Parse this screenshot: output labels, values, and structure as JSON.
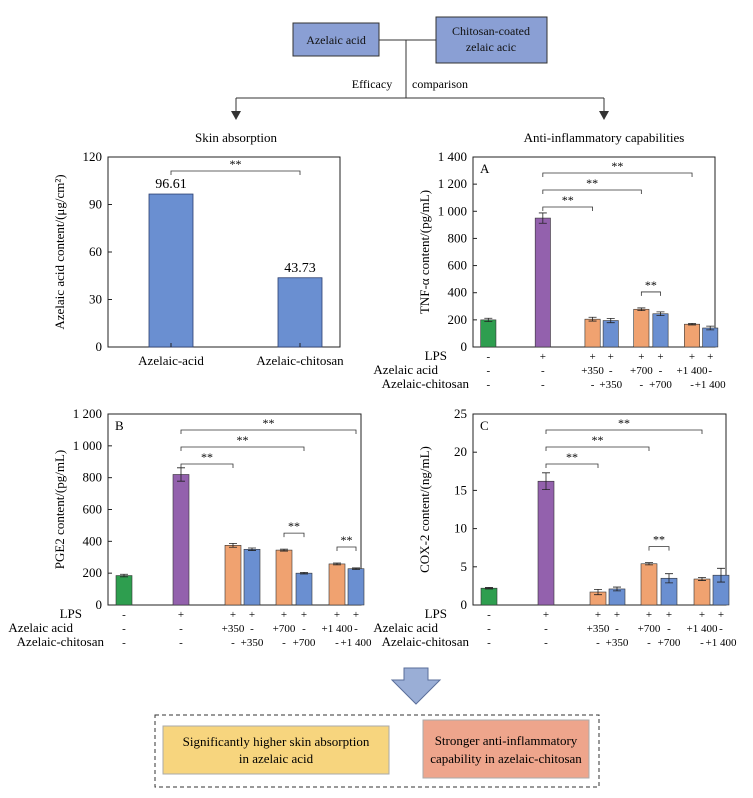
{
  "flow": {
    "box_azelaic": "Azelaic acid",
    "box_chitosan_line1": "Chitosan-coated",
    "box_chitosan_line2": "zelaic acic",
    "efficacy_word1": "Efficacy",
    "efficacy_word2": "comparison",
    "left_heading": "Skin absorption",
    "right_heading": "Anti-inflammatory capabilities",
    "conclusion_left_line1": "Significantly higher skin absorption",
    "conclusion_left_line2": "in azelaic acid",
    "conclusion_right_line1": "Stronger anti-inflammatory",
    "conclusion_right_line2": "capability in azelaic-chitosan"
  },
  "colors": {
    "bar_blue": "#6a8fd1",
    "box_fill": "#8a9fd4",
    "green": "#2e9e4f",
    "purple": "#9361ad",
    "orange": "#f0a270",
    "blue": "#6a8fd1",
    "conclusion_yellow": "#f7d57e",
    "conclusion_salmon": "#eea58c",
    "arrow": "#9aaed6"
  },
  "treatment_table": {
    "row_labels": [
      "LPS",
      "Azelaic acid",
      "Azelaic-chitosan"
    ],
    "lps": [
      "-",
      "+",
      "+",
      "+",
      "+",
      "+",
      "+",
      "+"
    ],
    "azelaic": [
      "-",
      "-",
      "+350",
      "-",
      "+700",
      "-",
      "+1 400",
      "-"
    ],
    "chitosan": [
      "-",
      "-",
      "-",
      "+350",
      "-",
      "+700",
      "-",
      "+1 400"
    ]
  },
  "chart_data": [
    {
      "id": "skin",
      "type": "bar",
      "title": "",
      "ylabel": "Azelaic acid content/(μg/cm²)",
      "categories": [
        "Azelaic-acid",
        "Azelaic-chitosan"
      ],
      "values": [
        96.61,
        43.73
      ],
      "value_labels": [
        "96.61",
        "43.73"
      ],
      "ylim": [
        0,
        120
      ],
      "yticks": [
        0,
        30,
        60,
        90,
        120
      ],
      "ytick_labels": [
        "0",
        "30",
        "60",
        "90",
        "120"
      ],
      "significance": [
        {
          "from": 0,
          "to": 1,
          "label": "**"
        }
      ]
    },
    {
      "id": "A",
      "type": "bar",
      "panel_label": "A",
      "ylabel": "TNF-α content/(pg/mL)",
      "ylim": [
        0,
        1400
      ],
      "yticks": [
        0,
        200,
        400,
        600,
        800,
        1000,
        1200,
        1400
      ],
      "ytick_labels": [
        "0",
        "200",
        "400",
        "600",
        "800",
        "1 000",
        "1 200",
        "1 400"
      ],
      "values": [
        200,
        950,
        205,
        195,
        278,
        245,
        168,
        140
      ],
      "errors": [
        12,
        38,
        14,
        16,
        10,
        14,
        6,
        14
      ],
      "significance": [
        {
          "from": 1,
          "to": 2,
          "label": "**"
        },
        {
          "from": 1,
          "to": 4,
          "label": "**"
        },
        {
          "from": 1,
          "to": 6,
          "label": "**"
        },
        {
          "from": 4,
          "to": 5,
          "label": "**"
        }
      ]
    },
    {
      "id": "B",
      "type": "bar",
      "panel_label": "B",
      "ylabel": "PGE2 content/(pg/mL)",
      "ylim": [
        0,
        1200
      ],
      "yticks": [
        0,
        200,
        400,
        600,
        800,
        1000,
        1200
      ],
      "ytick_labels": [
        "0",
        "200",
        "400",
        "600",
        "800",
        "1 000",
        "1 200"
      ],
      "values": [
        185,
        820,
        375,
        350,
        345,
        200,
        258,
        228
      ],
      "errors": [
        8,
        42,
        12,
        8,
        6,
        5,
        6,
        5
      ],
      "significance": [
        {
          "from": 1,
          "to": 2,
          "label": "**"
        },
        {
          "from": 1,
          "to": 5,
          "label": "**"
        },
        {
          "from": 1,
          "to": 7,
          "label": "**"
        },
        {
          "from": 4,
          "to": 5,
          "label": "**"
        },
        {
          "from": 6,
          "to": 7,
          "label": "**"
        }
      ]
    },
    {
      "id": "C",
      "type": "bar",
      "panel_label": "C",
      "ylabel": "COX-2 content/(ng/mL)",
      "ylim": [
        0,
        25
      ],
      "yticks": [
        0,
        5,
        10,
        15,
        20,
        25
      ],
      "ytick_labels": [
        "0",
        "5",
        "10",
        "15",
        "20",
        "25"
      ],
      "values": [
        2.2,
        16.2,
        1.7,
        2.1,
        5.4,
        3.5,
        3.4,
        3.9
      ],
      "errors": [
        0.1,
        1.1,
        0.35,
        0.25,
        0.15,
        0.6,
        0.2,
        0.9
      ],
      "significance": [
        {
          "from": 1,
          "to": 2,
          "label": "**"
        },
        {
          "from": 1,
          "to": 4,
          "label": "**"
        },
        {
          "from": 1,
          "to": 6,
          "label": "**"
        },
        {
          "from": 4,
          "to": 5,
          "label": "**"
        }
      ]
    }
  ]
}
